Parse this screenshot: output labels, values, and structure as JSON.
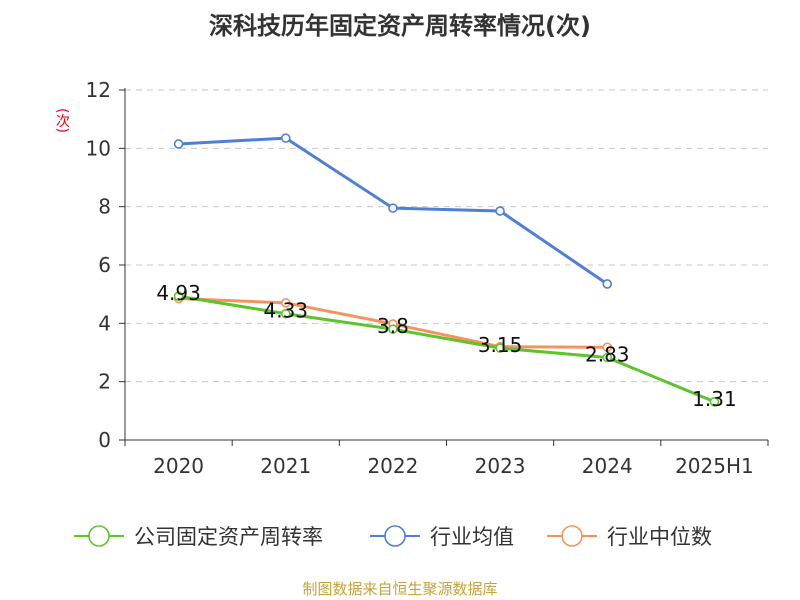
{
  "chart_data": {
    "type": "line",
    "title": "深科技历年固定资产周转率情况(次)",
    "ylabel": "(次)",
    "xlabel": "",
    "categories": [
      "2020",
      "2021",
      "2022",
      "2023",
      "2024",
      "2025H1"
    ],
    "ylim": [
      0,
      12
    ],
    "yticks": [
      0,
      2,
      4,
      6,
      8,
      10,
      12
    ],
    "grid": true,
    "legend_position": "bottom",
    "series": [
      {
        "name": "公司固定资产周转率",
        "color": "#5cc52a",
        "values": [
          4.93,
          4.33,
          3.8,
          3.15,
          2.83,
          1.31
        ],
        "labels": [
          "4.93",
          "4.33",
          "3.8",
          "3.15",
          "2.83",
          "1.31"
        ]
      },
      {
        "name": "行业均值",
        "color": "#4f7fd6",
        "values": [
          10.15,
          10.35,
          7.95,
          7.85,
          5.35,
          null
        ]
      },
      {
        "name": "行业中位数",
        "color": "#f5925e",
        "values": [
          4.85,
          4.7,
          3.98,
          3.2,
          3.18,
          null
        ]
      }
    ]
  },
  "source": "制图数据来自恒生聚源数据库"
}
